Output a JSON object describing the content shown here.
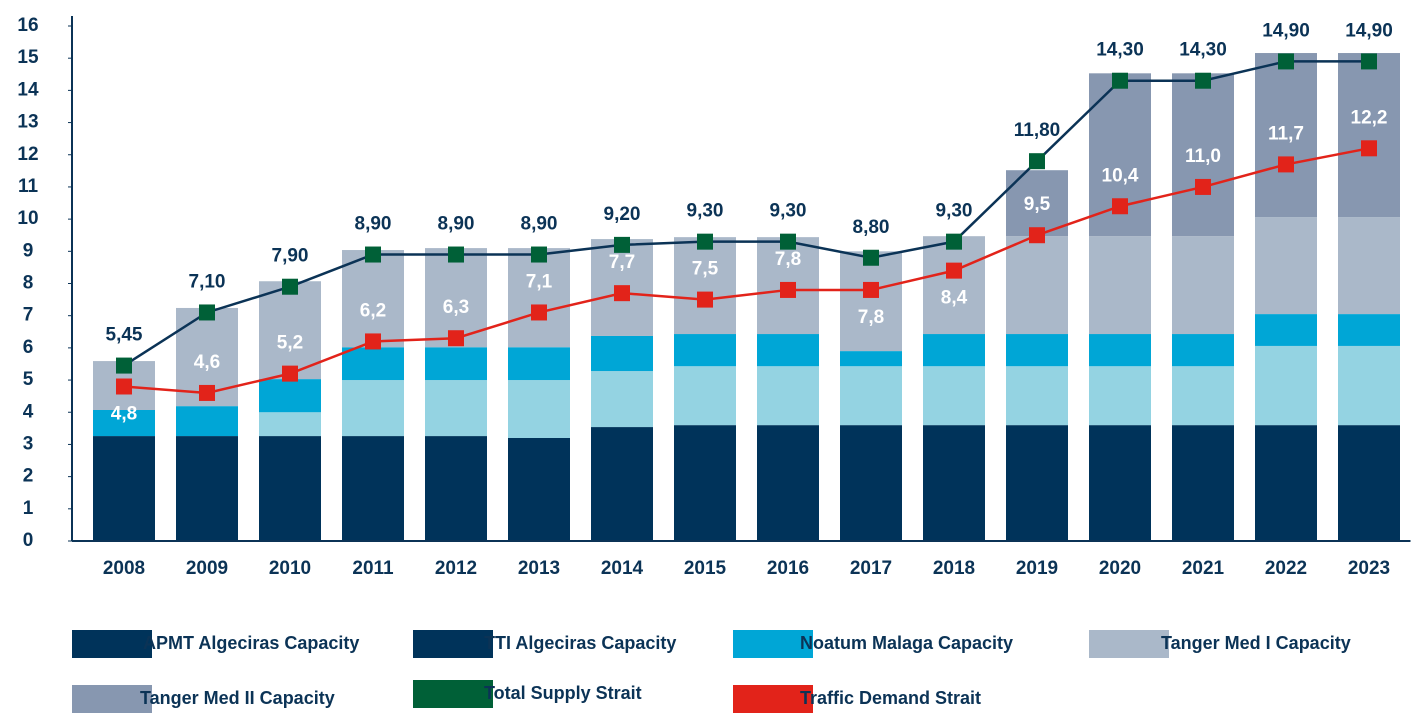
{
  "chart_data": {
    "type": "bar",
    "categories": [
      "2008",
      "2009",
      "2010",
      "2011",
      "2012",
      "2013",
      "2014",
      "2015",
      "2016",
      "2017",
      "2018",
      "2019",
      "2020",
      "2021",
      "2022",
      "2023"
    ],
    "ylim": [
      0,
      16
    ],
    "yticks": [
      0,
      1,
      2,
      3,
      4,
      5,
      6,
      7,
      8,
      9,
      10,
      11,
      12,
      13,
      14,
      15,
      16
    ],
    "series": [
      {
        "name": "APMT Algeciras Capacity",
        "type": "bar",
        "color": "#00335a",
        "values": [
          3.26,
          3.26,
          3.26,
          3.26,
          3.26,
          3.2,
          3.54,
          3.6,
          3.6,
          3.6,
          3.6,
          3.6,
          3.6,
          3.6,
          3.6,
          3.6
        ]
      },
      {
        "name": "TTI Algeciras Capacity",
        "type": "bar",
        "color": "#94d3e2",
        "legend_color": "#00335a",
        "values": [
          0,
          0,
          0.74,
          1.74,
          1.74,
          1.8,
          1.74,
          1.83,
          1.83,
          1.83,
          1.83,
          1.83,
          1.83,
          1.83,
          2.46,
          2.46
        ]
      },
      {
        "name": "Noatum Malaga Capacity",
        "type": "bar",
        "color": "#00a6d6",
        "values": [
          0.81,
          0.93,
          1.03,
          1.02,
          1.02,
          1.02,
          1.09,
          1.0,
          1.0,
          0.47,
          1.0,
          1.0,
          1.0,
          1.0,
          0.99,
          0.99
        ]
      },
      {
        "name": "Tanger Med I Capacity",
        "type": "bar",
        "color": "#aab8c9",
        "values": [
          1.52,
          3.05,
          3.04,
          3.02,
          3.08,
          3.08,
          3.01,
          3.01,
          3.01,
          3.1,
          3.04,
          3.04,
          3.04,
          3.04,
          3.01,
          3.01
        ]
      },
      {
        "name": "Tanger Med II Capacity",
        "type": "bar",
        "color": "#8797b0",
        "values": [
          0,
          0,
          0,
          0,
          0,
          0,
          0,
          0,
          0,
          0,
          0,
          2.05,
          5.06,
          5.06,
          5.1,
          5.1
        ]
      },
      {
        "name": "Total Supply Strait",
        "type": "line",
        "color": "#006037",
        "line_color": "#0b3356",
        "values": [
          5.45,
          7.1,
          7.9,
          8.9,
          8.9,
          8.9,
          9.2,
          9.3,
          9.3,
          8.8,
          9.3,
          11.8,
          14.3,
          14.3,
          14.9,
          14.9
        ],
        "value_labels": [
          "5,45",
          "7,10",
          "7,90",
          "8,90",
          "8,90",
          "8,90",
          "9,20",
          "9,30",
          "9,30",
          "8,80",
          "9,30",
          "11,80",
          "14,30",
          "14,30",
          "14,90",
          "14,90"
        ]
      },
      {
        "name": "Traffic Demand Strait",
        "type": "line",
        "color": "#e2231a",
        "values": [
          4.8,
          4.6,
          5.2,
          6.2,
          6.3,
          7.1,
          7.7,
          7.5,
          7.8,
          7.8,
          8.4,
          9.5,
          10.4,
          11.0,
          11.7,
          12.2
        ],
        "value_labels": [
          "4,8",
          "4,6",
          "5,2",
          "6,2",
          "6,3",
          "7,1",
          "7,7",
          "7,5",
          "7,8",
          "7,8",
          "8,4",
          "9,5",
          "10,4",
          "11,0",
          "11,7",
          "12,2"
        ]
      }
    ]
  }
}
